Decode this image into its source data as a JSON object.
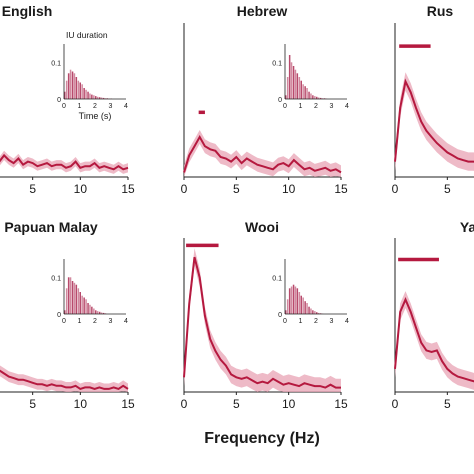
{
  "figure": {
    "xlabel": "Frequency (Hz)",
    "accent_color": "#b5193f",
    "band_color": "#e8a3b4"
  },
  "chart_data": [
    {
      "type": "line",
      "title": "English",
      "x_ticks": [
        0,
        5,
        10,
        15
      ],
      "xlim": [
        0,
        15
      ],
      "x": [
        0,
        0.5,
        1,
        1.5,
        2,
        2.5,
        3,
        3.5,
        4,
        4.5,
        5,
        5.5,
        6,
        6.5,
        7,
        7.5,
        8,
        8.5,
        9,
        9.5,
        10,
        10.5,
        11,
        11.5,
        12,
        12.5,
        13,
        13.5,
        14,
        14.5,
        15
      ],
      "values": [
        0.15,
        0.12,
        0.16,
        0.1,
        0.14,
        0.11,
        0.09,
        0.12,
        0.08,
        0.1,
        0.09,
        0.07,
        0.08,
        0.09,
        0.07,
        0.08,
        0.08,
        0.06,
        0.07,
        0.1,
        0.06,
        0.07,
        0.07,
        0.09,
        0.06,
        0.07,
        0.06,
        0.05,
        0.07,
        0.05,
        0.06
      ],
      "band_halfwidth": 0.03,
      "ylim": [
        0,
        1
      ],
      "inset": {
        "title": "IU duration",
        "xlabel": "Time (s)",
        "y_ticks": [
          "0.1",
          "0"
        ],
        "x_ticks": [
          "0",
          "1",
          "2",
          "3",
          "4"
        ],
        "xlim": [
          0,
          4
        ],
        "ylim": [
          0,
          0.15
        ],
        "bin_width": 0.125,
        "values": [
          0.02,
          0.05,
          0.07,
          0.08,
          0.075,
          0.07,
          0.06,
          0.05,
          0.045,
          0.04,
          0.03,
          0.025,
          0.02,
          0.015,
          0.012,
          0.01,
          0.008,
          0.006,
          0.005,
          0.004,
          0.003,
          0.002,
          0.002,
          0.001,
          0.001
        ]
      }
    },
    {
      "type": "line",
      "title": "Hebrew",
      "x_ticks": [
        0,
        5,
        10,
        15
      ],
      "xlim": [
        0,
        15
      ],
      "x": [
        0,
        0.5,
        1,
        1.5,
        2,
        2.5,
        3,
        3.5,
        4,
        4.5,
        5,
        5.5,
        6,
        6.5,
        7,
        7.5,
        8,
        8.5,
        9,
        9.5,
        10,
        10.5,
        11,
        11.5,
        12,
        12.5,
        13,
        13.5,
        14,
        14.5,
        15
      ],
      "values": [
        0.03,
        0.14,
        0.2,
        0.26,
        0.2,
        0.18,
        0.17,
        0.13,
        0.12,
        0.1,
        0.13,
        0.09,
        0.12,
        0.1,
        0.08,
        0.07,
        0.06,
        0.05,
        0.08,
        0.09,
        0.07,
        0.11,
        0.08,
        0.05,
        0.06,
        0.04,
        0.05,
        0.06,
        0.04,
        0.05,
        0.03
      ],
      "band_halfwidth": 0.045,
      "significance": {
        "x_start": 1.4,
        "x_end": 2.0,
        "y": 0.42
      },
      "ylim": [
        0,
        1
      ],
      "inset": {
        "title": "",
        "xlabel": "",
        "y_ticks": [
          "0.1",
          "0"
        ],
        "x_ticks": [
          "0",
          "1",
          "2",
          "3",
          "4"
        ],
        "xlim": [
          0,
          4
        ],
        "ylim": [
          0,
          0.15
        ],
        "bin_width": 0.125,
        "values": [
          0.01,
          0.06,
          0.12,
          0.1,
          0.09,
          0.08,
          0.07,
          0.06,
          0.05,
          0.04,
          0.035,
          0.03,
          0.02,
          0.015,
          0.01,
          0.008,
          0.006,
          0.004,
          0.003,
          0.002,
          0.002,
          0.001
        ]
      }
    },
    {
      "type": "line",
      "title": "Rus",
      "x_ticks": [
        0,
        5
      ],
      "xlim": [
        0,
        15
      ],
      "x": [
        0,
        0.5,
        1,
        1.5,
        2,
        2.5,
        3,
        3.5,
        4,
        4.5,
        5,
        5.5,
        6,
        6.5,
        7,
        7.5,
        8
      ],
      "values": [
        0.1,
        0.45,
        0.62,
        0.55,
        0.45,
        0.36,
        0.3,
        0.26,
        0.22,
        0.19,
        0.16,
        0.14,
        0.12,
        0.11,
        0.1,
        0.1,
        0.09
      ],
      "band_halfwidth": 0.06,
      "significance": {
        "x_start": 0.4,
        "x_end": 3.4,
        "y": 0.85
      },
      "ylim": [
        0,
        1
      ]
    },
    {
      "type": "line",
      "title": "Papuan Malay",
      "x_ticks": [
        5,
        10,
        15
      ],
      "xlim": [
        0,
        15
      ],
      "x": [
        0,
        0.5,
        1,
        1.5,
        2,
        2.5,
        3,
        3.5,
        4,
        4.5,
        5,
        5.5,
        6,
        6.5,
        7,
        7.5,
        8,
        8.5,
        9,
        9.5,
        10,
        10.5,
        11,
        11.5,
        12,
        12.5,
        13,
        13.5,
        14,
        14.5,
        15
      ],
      "values": [
        0.28,
        0.22,
        0.18,
        0.14,
        0.12,
        0.1,
        0.09,
        0.08,
        0.08,
        0.07,
        0.06,
        0.05,
        0.05,
        0.04,
        0.05,
        0.04,
        0.04,
        0.03,
        0.03,
        0.04,
        0.02,
        0.03,
        0.03,
        0.02,
        0.03,
        0.02,
        0.02,
        0.03,
        0.02,
        0.04,
        0.02
      ],
      "band_halfwidth": 0.035,
      "significance": {
        "x_start": 0,
        "x_end": 0.9,
        "y": 0.62
      },
      "ylim": [
        0,
        1
      ],
      "inset": {
        "title": "",
        "xlabel": "",
        "y_ticks": [
          "0.1",
          "0"
        ],
        "x_ticks": [
          "0",
          "1",
          "2",
          "3",
          "4"
        ],
        "xlim": [
          0,
          4
        ],
        "ylim": [
          0,
          0.15
        ],
        "bin_width": 0.125,
        "values": [
          0.01,
          0.07,
          0.1,
          0.1,
          0.09,
          0.085,
          0.08,
          0.07,
          0.06,
          0.05,
          0.045,
          0.04,
          0.03,
          0.025,
          0.02,
          0.015,
          0.01,
          0.008,
          0.006,
          0.004,
          0.003,
          0.002
        ]
      }
    },
    {
      "type": "line",
      "title": "Wooi",
      "x_ticks": [
        0,
        5,
        10,
        15
      ],
      "xlim": [
        0,
        15
      ],
      "x": [
        0,
        0.5,
        1,
        1.5,
        2,
        2.5,
        3,
        3.5,
        4,
        4.5,
        5,
        5.5,
        6,
        6.5,
        7,
        7.5,
        8,
        8.5,
        9,
        9.5,
        10,
        10.5,
        11,
        11.5,
        12,
        12.5,
        13,
        13.5,
        14,
        14.5,
        15
      ],
      "values": [
        0.1,
        0.6,
        0.92,
        0.78,
        0.52,
        0.36,
        0.28,
        0.22,
        0.18,
        0.12,
        0.1,
        0.09,
        0.1,
        0.08,
        0.06,
        0.07,
        0.06,
        0.09,
        0.07,
        0.05,
        0.06,
        0.05,
        0.04,
        0.06,
        0.05,
        0.04,
        0.04,
        0.03,
        0.05,
        0.03,
        0.03
      ],
      "band_halfwidth": 0.06,
      "significance": {
        "x_start": 0.2,
        "x_end": 3.3,
        "y": 1.0
      },
      "ylim": [
        0,
        1.05
      ],
      "inset": {
        "title": "",
        "xlabel": "",
        "y_ticks": [
          "0.1",
          "0"
        ],
        "x_ticks": [
          "0",
          "1",
          "2",
          "3",
          "4"
        ],
        "xlim": [
          0,
          4
        ],
        "ylim": [
          0,
          0.15
        ],
        "bin_width": 0.125,
        "values": [
          0.01,
          0.04,
          0.07,
          0.075,
          0.08,
          0.075,
          0.07,
          0.06,
          0.05,
          0.045,
          0.035,
          0.03,
          0.02,
          0.015,
          0.01,
          0.008,
          0.005,
          0.003,
          0.002,
          0.001
        ]
      }
    },
    {
      "type": "line",
      "title": "Ya",
      "x_ticks": [
        0,
        5
      ],
      "xlim": [
        0,
        15
      ],
      "x": [
        0,
        0.5,
        1,
        1.5,
        2,
        2.5,
        3,
        3.5,
        4,
        4.5,
        5,
        5.5,
        6,
        6.5,
        7,
        7.5,
        8
      ],
      "values": [
        0.15,
        0.52,
        0.6,
        0.52,
        0.42,
        0.32,
        0.27,
        0.26,
        0.27,
        0.2,
        0.15,
        0.12,
        0.1,
        0.09,
        0.08,
        0.07,
        0.06
      ],
      "band_halfwidth": 0.055,
      "significance": {
        "x_start": 0.3,
        "x_end": 4.2,
        "y": 0.86
      },
      "ylim": [
        0,
        1
      ]
    }
  ]
}
